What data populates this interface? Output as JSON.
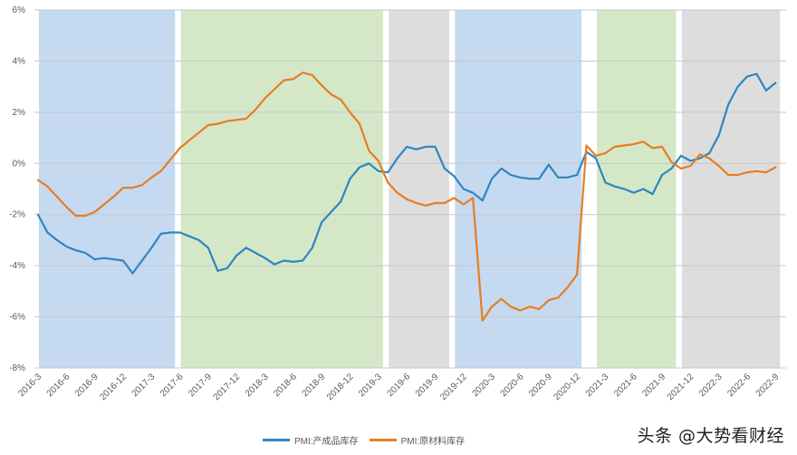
{
  "chart_data": {
    "type": "line",
    "title": "",
    "xlabel": "",
    "ylabel": "",
    "ylim": [
      -0.08,
      0.06
    ],
    "y_ticks": [
      "6%",
      "4%",
      "2%",
      "0%",
      "-2%",
      "-4%",
      "-6%",
      "-8%"
    ],
    "y_tick_values": [
      6,
      4,
      2,
      0,
      -2,
      -4,
      -6,
      -8
    ],
    "grid": true,
    "legend_position": "bottom",
    "x_tick_labels": [
      "2016-3",
      "2016-6",
      "2016-9",
      "2016-12",
      "2017-3",
      "2017-6",
      "2017-9",
      "2017-12",
      "2018-3",
      "2018-6",
      "2018-9",
      "2018-12",
      "2019-3",
      "2019-6",
      "2019-9",
      "2019-12",
      "2020-3",
      "2020-6",
      "2020-9",
      "2020-12",
      "2021-3",
      "2021-6",
      "2021-9",
      "2021-12",
      "2022-3",
      "2022-6",
      "2022-9"
    ],
    "x_start": "2016-3",
    "x_end": "2022-9",
    "frequency": "monthly",
    "shaded_regions": [
      {
        "from": "2016-3",
        "to": "2017-5",
        "color": "#c5d9f1"
      },
      {
        "from": "2017-6",
        "to": "2019-3",
        "color": "#d4e8c8"
      },
      {
        "from": "2019-4",
        "to": "2019-10",
        "color": "#dddddd"
      },
      {
        "from": "2019-11",
        "to": "2020-12",
        "color": "#c5d9f1"
      },
      {
        "from": "2021-2",
        "to": "2021-10",
        "color": "#d4e8c8"
      },
      {
        "from": "2021-11",
        "to": "2022-9",
        "color": "#dddddd"
      }
    ],
    "series": [
      {
        "name": "PMI:产成品库存",
        "color": "#2e86c1",
        "values": [
          -2.0,
          -2.7,
          -3.0,
          -3.25,
          -3.4,
          -3.5,
          -3.75,
          -3.7,
          -3.75,
          -3.8,
          -4.3,
          -3.8,
          -3.3,
          -2.75,
          -2.7,
          -2.7,
          -2.85,
          -3.0,
          -3.3,
          -4.2,
          -4.1,
          -3.6,
          -3.3,
          -3.5,
          -3.7,
          -3.95,
          -3.8,
          -3.85,
          -3.8,
          -3.3,
          -2.3,
          -1.9,
          -1.5,
          -0.6,
          -0.15,
          0.0,
          -0.3,
          -0.35,
          0.2,
          0.65,
          0.55,
          0.65,
          0.65,
          -0.2,
          -0.5,
          -1.0,
          -1.15,
          -1.45,
          -0.6,
          -0.2,
          -0.45,
          -0.55,
          -0.6,
          -0.6,
          -0.05,
          -0.55,
          -0.55,
          -0.45,
          0.45,
          0.2,
          -0.75,
          -0.9,
          -1.0,
          -1.15,
          -1.0,
          -1.2,
          -0.45,
          -0.2,
          0.3,
          0.1,
          0.2,
          0.4,
          1.1,
          2.3,
          3.0,
          3.4,
          3.5,
          2.85,
          3.15
        ]
      },
      {
        "name": "PMI:原材料库存",
        "color": "#e67e22",
        "values": [
          -0.65,
          -0.9,
          -1.3,
          -1.7,
          -2.05,
          -2.05,
          -1.9,
          -1.6,
          -1.3,
          -0.95,
          -0.95,
          -0.85,
          -0.55,
          -0.3,
          0.15,
          0.6,
          0.9,
          1.2,
          1.5,
          1.55,
          1.65,
          1.7,
          1.75,
          2.1,
          2.55,
          2.9,
          3.25,
          3.3,
          3.55,
          3.45,
          3.05,
          2.7,
          2.5,
          2.0,
          1.55,
          0.5,
          0.1,
          -0.75,
          -1.15,
          -1.4,
          -1.55,
          -1.65,
          -1.55,
          -1.55,
          -1.35,
          -1.6,
          -1.35,
          -6.15,
          -5.6,
          -5.3,
          -5.6,
          -5.75,
          -5.6,
          -5.7,
          -5.35,
          -5.25,
          -4.85,
          -4.35,
          0.7,
          0.3,
          0.4,
          0.65,
          0.7,
          0.75,
          0.85,
          0.6,
          0.65,
          0.05,
          -0.2,
          -0.1,
          0.35,
          0.2,
          -0.1,
          -0.45,
          -0.45,
          -0.35,
          -0.3,
          -0.35,
          -0.15
        ]
      }
    ]
  },
  "legend": {
    "items": [
      {
        "label": "PMI:产成品库存",
        "color": "#2e86c1"
      },
      {
        "label": "PMI:原材料库存",
        "color": "#e67e22"
      }
    ]
  },
  "watermark": "头条 @大势看财经"
}
